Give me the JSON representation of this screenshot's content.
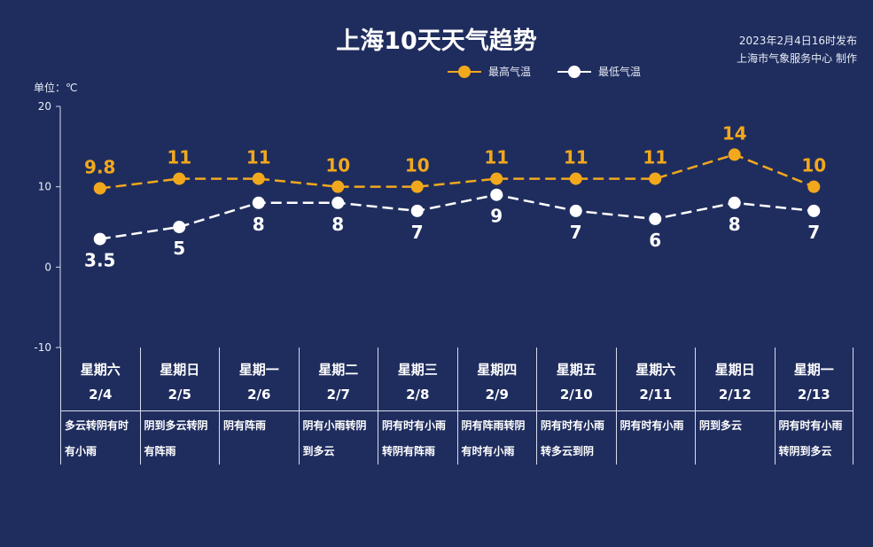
{
  "title": "上海10天天气趋势",
  "publish": {
    "line1": "2023年2月4日16时发布",
    "line2": "上海市气象服务中心 制作"
  },
  "unit_label": "单位：℃",
  "colors": {
    "background": "#1f2d5e",
    "high": "#f2a81d",
    "low": "#ffffff",
    "axis": "#d6dcec"
  },
  "chart_data": {
    "type": "line",
    "title": "上海10天天气趋势",
    "ylabel": "单位：℃",
    "ylim": [
      -10,
      20
    ],
    "yticks": [
      20,
      10,
      0,
      -10
    ],
    "legend_position": "top-right",
    "categories": [
      "2/4",
      "2/5",
      "2/6",
      "2/7",
      "2/8",
      "2/9",
      "2/10",
      "2/11",
      "2/12",
      "2/13"
    ],
    "series": [
      {
        "name": "最高气温",
        "values": [
          9.8,
          11,
          11,
          10,
          10,
          11,
          11,
          11,
          14,
          10
        ],
        "labels": [
          "9.8",
          "11",
          "11",
          "10",
          "10",
          "11",
          "11",
          "11",
          "14",
          "10"
        ]
      },
      {
        "name": "最低气温",
        "values": [
          3.5,
          5,
          8,
          8,
          7,
          9,
          7,
          6,
          8,
          7
        ],
        "labels": [
          "3.5",
          "5",
          "8",
          "8",
          "7",
          "9",
          "7",
          "6",
          "8",
          "7"
        ]
      }
    ]
  },
  "days": [
    {
      "weekday": "星期六",
      "date": "2/4",
      "weather": "多云转阴有时有小雨"
    },
    {
      "weekday": "星期日",
      "date": "2/5",
      "weather": "阴到多云转阴有阵雨"
    },
    {
      "weekday": "星期一",
      "date": "2/6",
      "weather": "阴有阵雨"
    },
    {
      "weekday": "星期二",
      "date": "2/7",
      "weather": "阴有小雨转阴到多云"
    },
    {
      "weekday": "星期三",
      "date": "2/8",
      "weather": "阴有时有小雨转阴有阵雨"
    },
    {
      "weekday": "星期四",
      "date": "2/9",
      "weather": "阴有阵雨转阴有时有小雨"
    },
    {
      "weekday": "星期五",
      "date": "2/10",
      "weather": "阴有时有小雨转多云到阴"
    },
    {
      "weekday": "星期六",
      "date": "2/11",
      "weather": "阴有时有小雨"
    },
    {
      "weekday": "星期日",
      "date": "2/12",
      "weather": "阴到多云"
    },
    {
      "weekday": "星期一",
      "date": "2/13",
      "weather": "阴有时有小雨转阴到多云"
    }
  ]
}
